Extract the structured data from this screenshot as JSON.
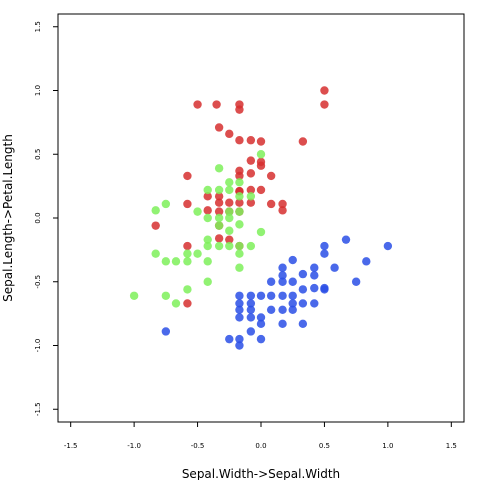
{
  "chart_data": {
    "type": "scatter",
    "xlabel": "Sepal.Width->Sepal.Width",
    "ylabel": "Sepal.Length->Petal.Length",
    "xlim": [
      -1.6,
      1.6
    ],
    "ylim": [
      -1.6,
      1.6
    ],
    "x_ticks": [
      "-1.5",
      "-1.0",
      "-0.5",
      "0.0",
      "0.5",
      "1.0",
      "1.5"
    ],
    "y_ticks": [
      "-1.5",
      "-1.0",
      "-0.5",
      "0.0",
      "0.5",
      "1.0",
      "1.5"
    ],
    "grid": false,
    "legend": "none",
    "series": [
      {
        "color": "#d62f2f",
        "points": [
          [
            -0.5,
            0.89
          ],
          [
            -0.35,
            0.89
          ],
          [
            -0.17,
            0.89
          ],
          [
            -0.17,
            0.85
          ],
          [
            0.5,
            1.0
          ],
          [
            0.5,
            0.89
          ],
          [
            -0.33,
            0.71
          ],
          [
            -0.25,
            0.66
          ],
          [
            -0.17,
            0.61
          ],
          [
            -0.08,
            0.61
          ],
          [
            0.0,
            0.6
          ],
          [
            0.33,
            0.6
          ],
          [
            -0.08,
            0.45
          ],
          [
            0.0,
            0.44
          ],
          [
            0.0,
            0.41
          ],
          [
            -0.17,
            0.37
          ],
          [
            -0.17,
            0.33
          ],
          [
            -0.08,
            0.35
          ],
          [
            0.08,
            0.33
          ],
          [
            -0.58,
            0.33
          ],
          [
            -0.17,
            0.21
          ],
          [
            -0.08,
            0.22
          ],
          [
            0.0,
            0.22
          ],
          [
            -0.42,
            0.17
          ],
          [
            -0.33,
            0.17
          ],
          [
            -0.33,
            0.12
          ],
          [
            -0.25,
            0.12
          ],
          [
            -0.17,
            0.21
          ],
          [
            -0.17,
            0.12
          ],
          [
            -0.08,
            0.12
          ],
          [
            0.08,
            0.11
          ],
          [
            0.17,
            0.11
          ],
          [
            0.17,
            0.06
          ],
          [
            -0.58,
            0.11
          ],
          [
            -0.42,
            0.06
          ],
          [
            -0.33,
            0.05
          ],
          [
            -0.25,
            0.05
          ],
          [
            -0.17,
            0.05
          ],
          [
            -0.83,
            -0.06
          ],
          [
            -0.33,
            -0.06
          ],
          [
            -0.33,
            -0.16
          ],
          [
            -0.25,
            -0.17
          ],
          [
            -0.17,
            -0.22
          ],
          [
            -0.58,
            -0.22
          ],
          [
            -0.58,
            -0.67
          ]
        ]
      },
      {
        "color": "#7ef05a",
        "points": [
          [
            0.0,
            0.5
          ],
          [
            -0.25,
            0.28
          ],
          [
            -0.17,
            0.28
          ],
          [
            -0.33,
            0.39
          ],
          [
            -0.42,
            0.22
          ],
          [
            -0.33,
            0.22
          ],
          [
            -0.25,
            0.22
          ],
          [
            -0.17,
            0.17
          ],
          [
            -0.08,
            0.17
          ],
          [
            -0.83,
            0.06
          ],
          [
            -0.75,
            0.11
          ],
          [
            -0.5,
            0.05
          ],
          [
            -0.25,
            0.05
          ],
          [
            -0.17,
            0.05
          ],
          [
            -0.42,
            0.0
          ],
          [
            -0.33,
            0.0
          ],
          [
            -0.25,
            0.0
          ],
          [
            -0.17,
            -0.05
          ],
          [
            -0.33,
            -0.06
          ],
          [
            -0.25,
            -0.1
          ],
          [
            0.0,
            -0.11
          ],
          [
            -0.42,
            -0.17
          ],
          [
            -0.42,
            -0.22
          ],
          [
            -0.33,
            -0.22
          ],
          [
            -0.25,
            -0.22
          ],
          [
            -0.17,
            -0.22
          ],
          [
            -0.08,
            -0.22
          ],
          [
            -0.58,
            -0.28
          ],
          [
            -0.83,
            -0.28
          ],
          [
            -0.5,
            -0.28
          ],
          [
            -0.75,
            -0.34
          ],
          [
            -0.67,
            -0.34
          ],
          [
            -0.58,
            -0.34
          ],
          [
            -0.17,
            -0.28
          ],
          [
            -0.42,
            -0.34
          ],
          [
            -0.17,
            -0.39
          ],
          [
            -0.58,
            -0.56
          ],
          [
            -0.42,
            -0.5
          ],
          [
            -0.75,
            -0.61
          ],
          [
            -0.67,
            -0.67
          ],
          [
            -1.0,
            -0.61
          ]
        ]
      },
      {
        "color": "#2a4fe6",
        "points": [
          [
            0.67,
            -0.17
          ],
          [
            0.5,
            -0.22
          ],
          [
            1.0,
            -0.22
          ],
          [
            0.25,
            -0.33
          ],
          [
            0.5,
            -0.28
          ],
          [
            0.58,
            -0.39
          ],
          [
            0.83,
            -0.34
          ],
          [
            0.42,
            -0.39
          ],
          [
            0.42,
            -0.45
          ],
          [
            0.17,
            -0.39
          ],
          [
            0.17,
            -0.45
          ],
          [
            0.33,
            -0.44
          ],
          [
            0.75,
            -0.5
          ],
          [
            0.25,
            -0.5
          ],
          [
            0.08,
            -0.5
          ],
          [
            0.17,
            -0.5
          ],
          [
            0.42,
            -0.55
          ],
          [
            0.5,
            -0.55
          ],
          [
            0.0,
            -0.61
          ],
          [
            0.08,
            -0.61
          ],
          [
            0.17,
            -0.61
          ],
          [
            0.25,
            -0.61
          ],
          [
            0.33,
            -0.56
          ],
          [
            0.5,
            -0.56
          ],
          [
            -0.17,
            -0.61
          ],
          [
            -0.08,
            -0.61
          ],
          [
            -0.17,
            -0.67
          ],
          [
            -0.08,
            -0.67
          ],
          [
            0.25,
            -0.67
          ],
          [
            -0.17,
            -0.72
          ],
          [
            -0.08,
            -0.72
          ],
          [
            0.08,
            -0.72
          ],
          [
            0.17,
            -0.72
          ],
          [
            0.25,
            -0.72
          ],
          [
            0.33,
            -0.67
          ],
          [
            0.42,
            -0.67
          ],
          [
            -0.08,
            -0.78
          ],
          [
            0.0,
            -0.78
          ],
          [
            -0.17,
            -0.78
          ],
          [
            0.0,
            -0.83
          ],
          [
            0.17,
            -0.83
          ],
          [
            0.33,
            -0.83
          ],
          [
            -0.75,
            -0.89
          ],
          [
            -0.08,
            -0.89
          ],
          [
            -0.17,
            -0.95
          ],
          [
            -0.25,
            -0.95
          ],
          [
            0.0,
            -0.95
          ],
          [
            -0.17,
            -1.0
          ]
        ]
      }
    ]
  }
}
